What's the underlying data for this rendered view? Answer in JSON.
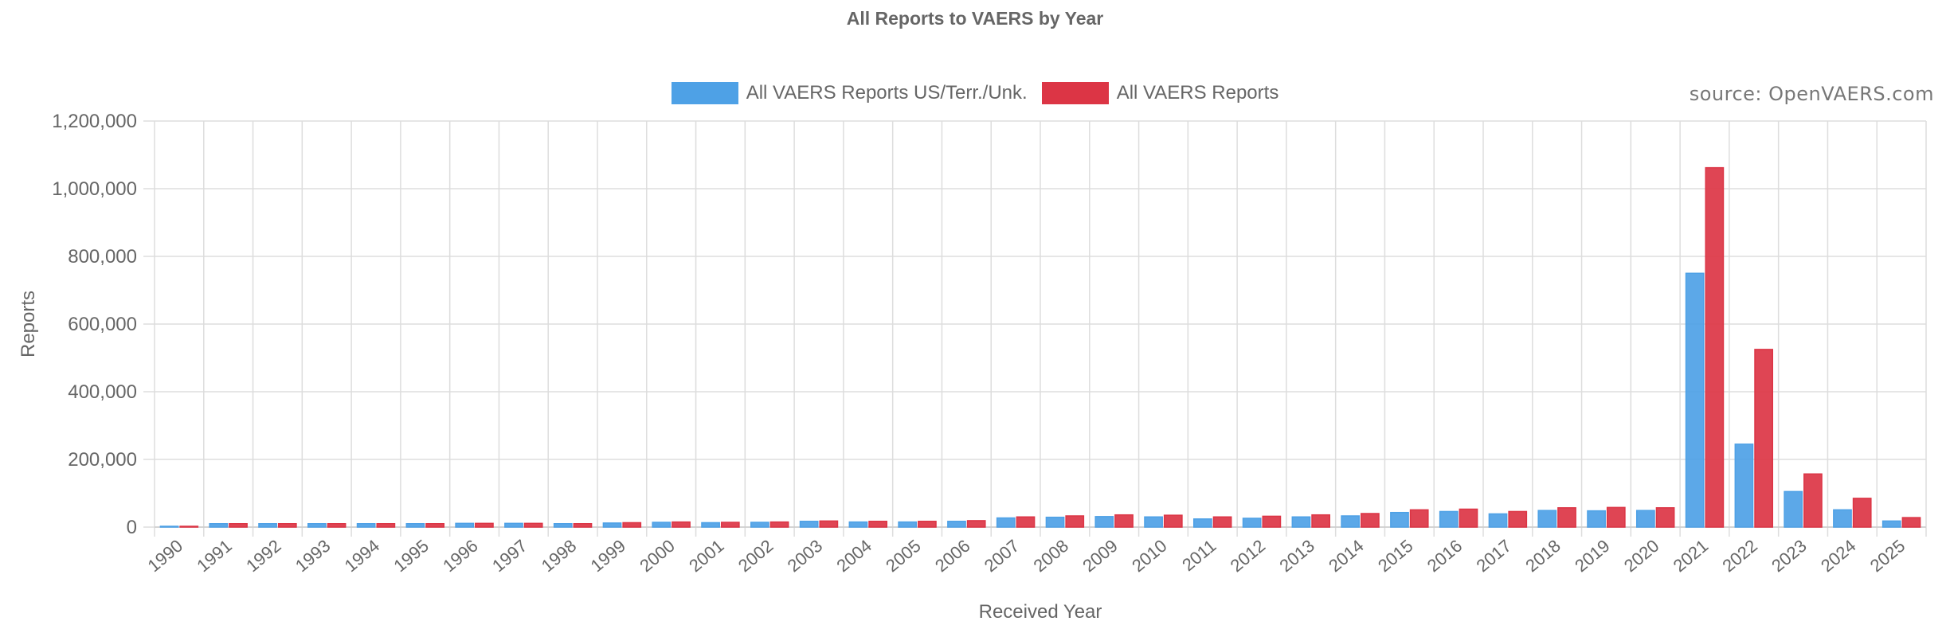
{
  "chart_data": {
    "type": "bar",
    "title": "All Reports to VAERS by Year",
    "xlabel": "Received Year",
    "ylabel": "Reports",
    "ylim": [
      0,
      1200000
    ],
    "y_ticks": [
      "0",
      "200,000",
      "400,000",
      "600,000",
      "800,000",
      "1,000,000",
      "1,200,000"
    ],
    "grid": true,
    "legend_position": "top-center",
    "source_note": "source: OpenVAERS.com",
    "categories": [
      "1990",
      "1991",
      "1992",
      "1993",
      "1994",
      "1995",
      "1996",
      "1997",
      "1998",
      "1999",
      "2000",
      "2001",
      "2002",
      "2003",
      "2004",
      "2005",
      "2006",
      "2007",
      "2008",
      "2009",
      "2010",
      "2011",
      "2012",
      "2013",
      "2014",
      "2015",
      "2016",
      "2017",
      "2018",
      "2019",
      "2020",
      "2021",
      "2022",
      "2023",
      "2024",
      "2025"
    ],
    "series": [
      {
        "name": "All VAERS Reports US/Terr./Unk.",
        "color": "#4ea1e6",
        "values": [
          2000,
          10000,
          10000,
          10000,
          10000,
          10000,
          11000,
          11000,
          10000,
          12000,
          14000,
          13000,
          14000,
          17000,
          15000,
          15000,
          17000,
          27000,
          29000,
          31000,
          30000,
          24000,
          26000,
          30000,
          33000,
          43000,
          46000,
          39000,
          49000,
          48000,
          49000,
          750000,
          245000,
          105000,
          51000,
          18000
        ]
      },
      {
        "name": "All VAERS Reports",
        "color": "#dc3545",
        "values": [
          2000,
          10000,
          10000,
          10000,
          10000,
          10000,
          11000,
          11000,
          10000,
          13000,
          15000,
          14000,
          15000,
          18000,
          17000,
          17000,
          19000,
          30000,
          33000,
          36000,
          35000,
          30000,
          32000,
          36000,
          40000,
          51000,
          53000,
          46000,
          57000,
          58000,
          57000,
          1062000,
          525000,
          157000,
          85000,
          28000
        ]
      }
    ]
  }
}
